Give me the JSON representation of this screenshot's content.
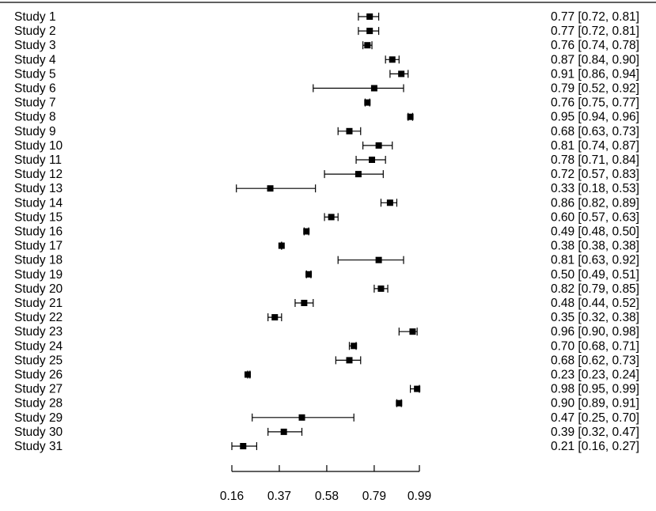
{
  "chart_data": {
    "type": "forest",
    "title": "",
    "xlabel": "",
    "ylabel": "",
    "xlim": [
      0.16,
      0.99
    ],
    "x_ticks": [
      "0.16",
      "0.37",
      "0.58",
      "0.79",
      "0.99"
    ],
    "grid": false,
    "legend": "none",
    "colors": {
      "mark": "#000000",
      "text": "#000000",
      "background": "#ffffff"
    },
    "studies": [
      {
        "label": "Study 1",
        "est": 0.77,
        "lo": 0.72,
        "hi": 0.81,
        "text": "0.77 [0.72, 0.81]"
      },
      {
        "label": "Study 2",
        "est": 0.77,
        "lo": 0.72,
        "hi": 0.81,
        "text": "0.77 [0.72, 0.81]"
      },
      {
        "label": "Study 3",
        "est": 0.76,
        "lo": 0.74,
        "hi": 0.78,
        "text": "0.76 [0.74, 0.78]"
      },
      {
        "label": "Study 4",
        "est": 0.87,
        "lo": 0.84,
        "hi": 0.9,
        "text": "0.87 [0.84, 0.90]"
      },
      {
        "label": "Study 5",
        "est": 0.91,
        "lo": 0.86,
        "hi": 0.94,
        "text": "0.91 [0.86, 0.94]"
      },
      {
        "label": "Study 6",
        "est": 0.79,
        "lo": 0.52,
        "hi": 0.92,
        "text": "0.79 [0.52, 0.92]"
      },
      {
        "label": "Study 7",
        "est": 0.76,
        "lo": 0.75,
        "hi": 0.77,
        "text": "0.76 [0.75, 0.77]"
      },
      {
        "label": "Study 8",
        "est": 0.95,
        "lo": 0.94,
        "hi": 0.96,
        "text": "0.95 [0.94, 0.96]"
      },
      {
        "label": "Study 9",
        "est": 0.68,
        "lo": 0.63,
        "hi": 0.73,
        "text": "0.68 [0.63, 0.73]"
      },
      {
        "label": "Study 10",
        "est": 0.81,
        "lo": 0.74,
        "hi": 0.87,
        "text": "0.81 [0.74, 0.87]"
      },
      {
        "label": "Study 11",
        "est": 0.78,
        "lo": 0.71,
        "hi": 0.84,
        "text": "0.78 [0.71, 0.84]"
      },
      {
        "label": "Study 12",
        "est": 0.72,
        "lo": 0.57,
        "hi": 0.83,
        "text": "0.72 [0.57, 0.83]"
      },
      {
        "label": "Study 13",
        "est": 0.33,
        "lo": 0.18,
        "hi": 0.53,
        "text": "0.33 [0.18, 0.53]"
      },
      {
        "label": "Study 14",
        "est": 0.86,
        "lo": 0.82,
        "hi": 0.89,
        "text": "0.86 [0.82, 0.89]"
      },
      {
        "label": "Study 15",
        "est": 0.6,
        "lo": 0.57,
        "hi": 0.63,
        "text": "0.60 [0.57, 0.63]"
      },
      {
        "label": "Study 16",
        "est": 0.49,
        "lo": 0.48,
        "hi": 0.5,
        "text": "0.49 [0.48, 0.50]"
      },
      {
        "label": "Study 17",
        "est": 0.38,
        "lo": 0.38,
        "hi": 0.38,
        "text": "0.38 [0.38, 0.38]"
      },
      {
        "label": "Study 18",
        "est": 0.81,
        "lo": 0.63,
        "hi": 0.92,
        "text": "0.81 [0.63, 0.92]"
      },
      {
        "label": "Study 19",
        "est": 0.5,
        "lo": 0.49,
        "hi": 0.51,
        "text": "0.50 [0.49, 0.51]"
      },
      {
        "label": "Study 20",
        "est": 0.82,
        "lo": 0.79,
        "hi": 0.85,
        "text": "0.82 [0.79, 0.85]"
      },
      {
        "label": "Study 21",
        "est": 0.48,
        "lo": 0.44,
        "hi": 0.52,
        "text": "0.48 [0.44, 0.52]"
      },
      {
        "label": "Study 22",
        "est": 0.35,
        "lo": 0.32,
        "hi": 0.38,
        "text": "0.35 [0.32, 0.38]"
      },
      {
        "label": "Study 23",
        "est": 0.96,
        "lo": 0.9,
        "hi": 0.98,
        "text": "0.96 [0.90, 0.98]"
      },
      {
        "label": "Study 24",
        "est": 0.7,
        "lo": 0.68,
        "hi": 0.71,
        "text": "0.70 [0.68, 0.71]"
      },
      {
        "label": "Study 25",
        "est": 0.68,
        "lo": 0.62,
        "hi": 0.73,
        "text": "0.68 [0.62, 0.73]"
      },
      {
        "label": "Study 26",
        "est": 0.23,
        "lo": 0.23,
        "hi": 0.24,
        "text": "0.23 [0.23, 0.24]"
      },
      {
        "label": "Study 27",
        "est": 0.98,
        "lo": 0.95,
        "hi": 0.99,
        "text": "0.98 [0.95, 0.99]"
      },
      {
        "label": "Study 28",
        "est": 0.9,
        "lo": 0.89,
        "hi": 0.91,
        "text": "0.90 [0.89, 0.91]"
      },
      {
        "label": "Study 29",
        "est": 0.47,
        "lo": 0.25,
        "hi": 0.7,
        "text": "0.47 [0.25, 0.70]"
      },
      {
        "label": "Study 30",
        "est": 0.39,
        "lo": 0.32,
        "hi": 0.47,
        "text": "0.39 [0.32, 0.47]"
      },
      {
        "label": "Study 31",
        "est": 0.21,
        "lo": 0.16,
        "hi": 0.27,
        "text": "0.21 [0.16, 0.27]"
      }
    ]
  }
}
